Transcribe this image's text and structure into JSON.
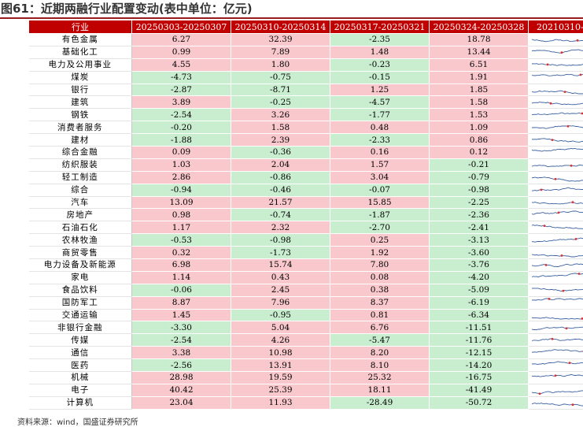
{
  "title": "图61：近期两融行业配置变动(表中单位：亿元)",
  "table": {
    "headers": [
      "行业",
      "20250303-20250307",
      "20250310-20250314",
      "20250317-20250321",
      "20250324-20250328",
      "20210310-"
    ],
    "rows": [
      {
        "name": "有色金属",
        "v": [
          "6.27",
          "32.39",
          "-2.35",
          "18.78"
        ]
      },
      {
        "name": "基础化工",
        "v": [
          "0.99",
          "7.89",
          "1.48",
          "13.44"
        ]
      },
      {
        "name": "电力及公用事业",
        "v": [
          "4.55",
          "1.80",
          "-0.23",
          "6.51"
        ]
      },
      {
        "name": "煤炭",
        "v": [
          "-4.73",
          "-0.75",
          "-0.15",
          "1.91"
        ]
      },
      {
        "name": "银行",
        "v": [
          "-2.87",
          "-8.71",
          "1.25",
          "1.85"
        ]
      },
      {
        "name": "建筑",
        "v": [
          "3.89",
          "-0.25",
          "-4.57",
          "1.58"
        ]
      },
      {
        "name": "钢铁",
        "v": [
          "-2.54",
          "3.26",
          "-1.77",
          "1.53"
        ]
      },
      {
        "name": "消费者服务",
        "v": [
          "-0.20",
          "1.58",
          "0.48",
          "1.09"
        ]
      },
      {
        "name": "建材",
        "v": [
          "-1.88",
          "2.39",
          "-2.33",
          "0.86"
        ]
      },
      {
        "name": "综合金融",
        "v": [
          "0.09",
          "-0.36",
          "0.16",
          "0.12"
        ]
      },
      {
        "name": "纺织服装",
        "v": [
          "1.03",
          "2.04",
          "1.57",
          "-0.21"
        ]
      },
      {
        "name": "轻工制造",
        "v": [
          "2.86",
          "-0.86",
          "3.04",
          "-0.79"
        ]
      },
      {
        "name": "综合",
        "v": [
          "-0.94",
          "-0.46",
          "-0.07",
          "-0.98"
        ]
      },
      {
        "name": "汽车",
        "v": [
          "13.09",
          "21.57",
          "15.85",
          "-2.25"
        ]
      },
      {
        "name": "房地产",
        "v": [
          "0.98",
          "-0.74",
          "-1.87",
          "-2.36"
        ]
      },
      {
        "name": "石油石化",
        "v": [
          "1.17",
          "2.32",
          "-2.70",
          "-2.41"
        ]
      },
      {
        "name": "农林牧渔",
        "v": [
          "-0.53",
          "-0.98",
          "0.25",
          "-3.13"
        ]
      },
      {
        "name": "商贸零售",
        "v": [
          "0.32",
          "-1.73",
          "1.92",
          "-3.60"
        ]
      },
      {
        "name": "电力设备及新能源",
        "v": [
          "6.98",
          "15.74",
          "7.80",
          "-3.76"
        ]
      },
      {
        "name": "家电",
        "v": [
          "1.14",
          "0.43",
          "0.08",
          "-4.20"
        ]
      },
      {
        "name": "食品饮料",
        "v": [
          "-0.06",
          "2.45",
          "0.38",
          "-5.09"
        ]
      },
      {
        "name": "国防军工",
        "v": [
          "8.87",
          "7.96",
          "8.37",
          "-6.19"
        ]
      },
      {
        "name": "交通运输",
        "v": [
          "1.45",
          "-0.95",
          "0.81",
          "-6.34"
        ]
      },
      {
        "name": "非银行金融",
        "v": [
          "-3.30",
          "5.04",
          "6.76",
          "-11.51"
        ]
      },
      {
        "name": "传媒",
        "v": [
          "-2.54",
          "4.26",
          "-5.47",
          "-11.76"
        ]
      },
      {
        "name": "通信",
        "v": [
          "3.38",
          "10.98",
          "8.20",
          "-12.15"
        ]
      },
      {
        "name": "医药",
        "v": [
          "-2.56",
          "13.91",
          "8.10",
          "-14.20"
        ]
      },
      {
        "name": "机械",
        "v": [
          "28.98",
          "19.59",
          "25.32",
          "-16.75"
        ]
      },
      {
        "name": "电子",
        "v": [
          "40.42",
          "25.39",
          "18.11",
          "-41.49"
        ]
      },
      {
        "name": "计算机",
        "v": [
          "23.04",
          "11.93",
          "-28.49",
          "-50.72"
        ]
      }
    ]
  },
  "colors": {
    "header": "#c00000",
    "positive": "#f8c8cd",
    "negative": "#c8edcf",
    "sparkline": "#3a5f9f",
    "sparkline_marker": "#e03030"
  },
  "footer": "资料来源：wind，国盛证券研究所"
}
